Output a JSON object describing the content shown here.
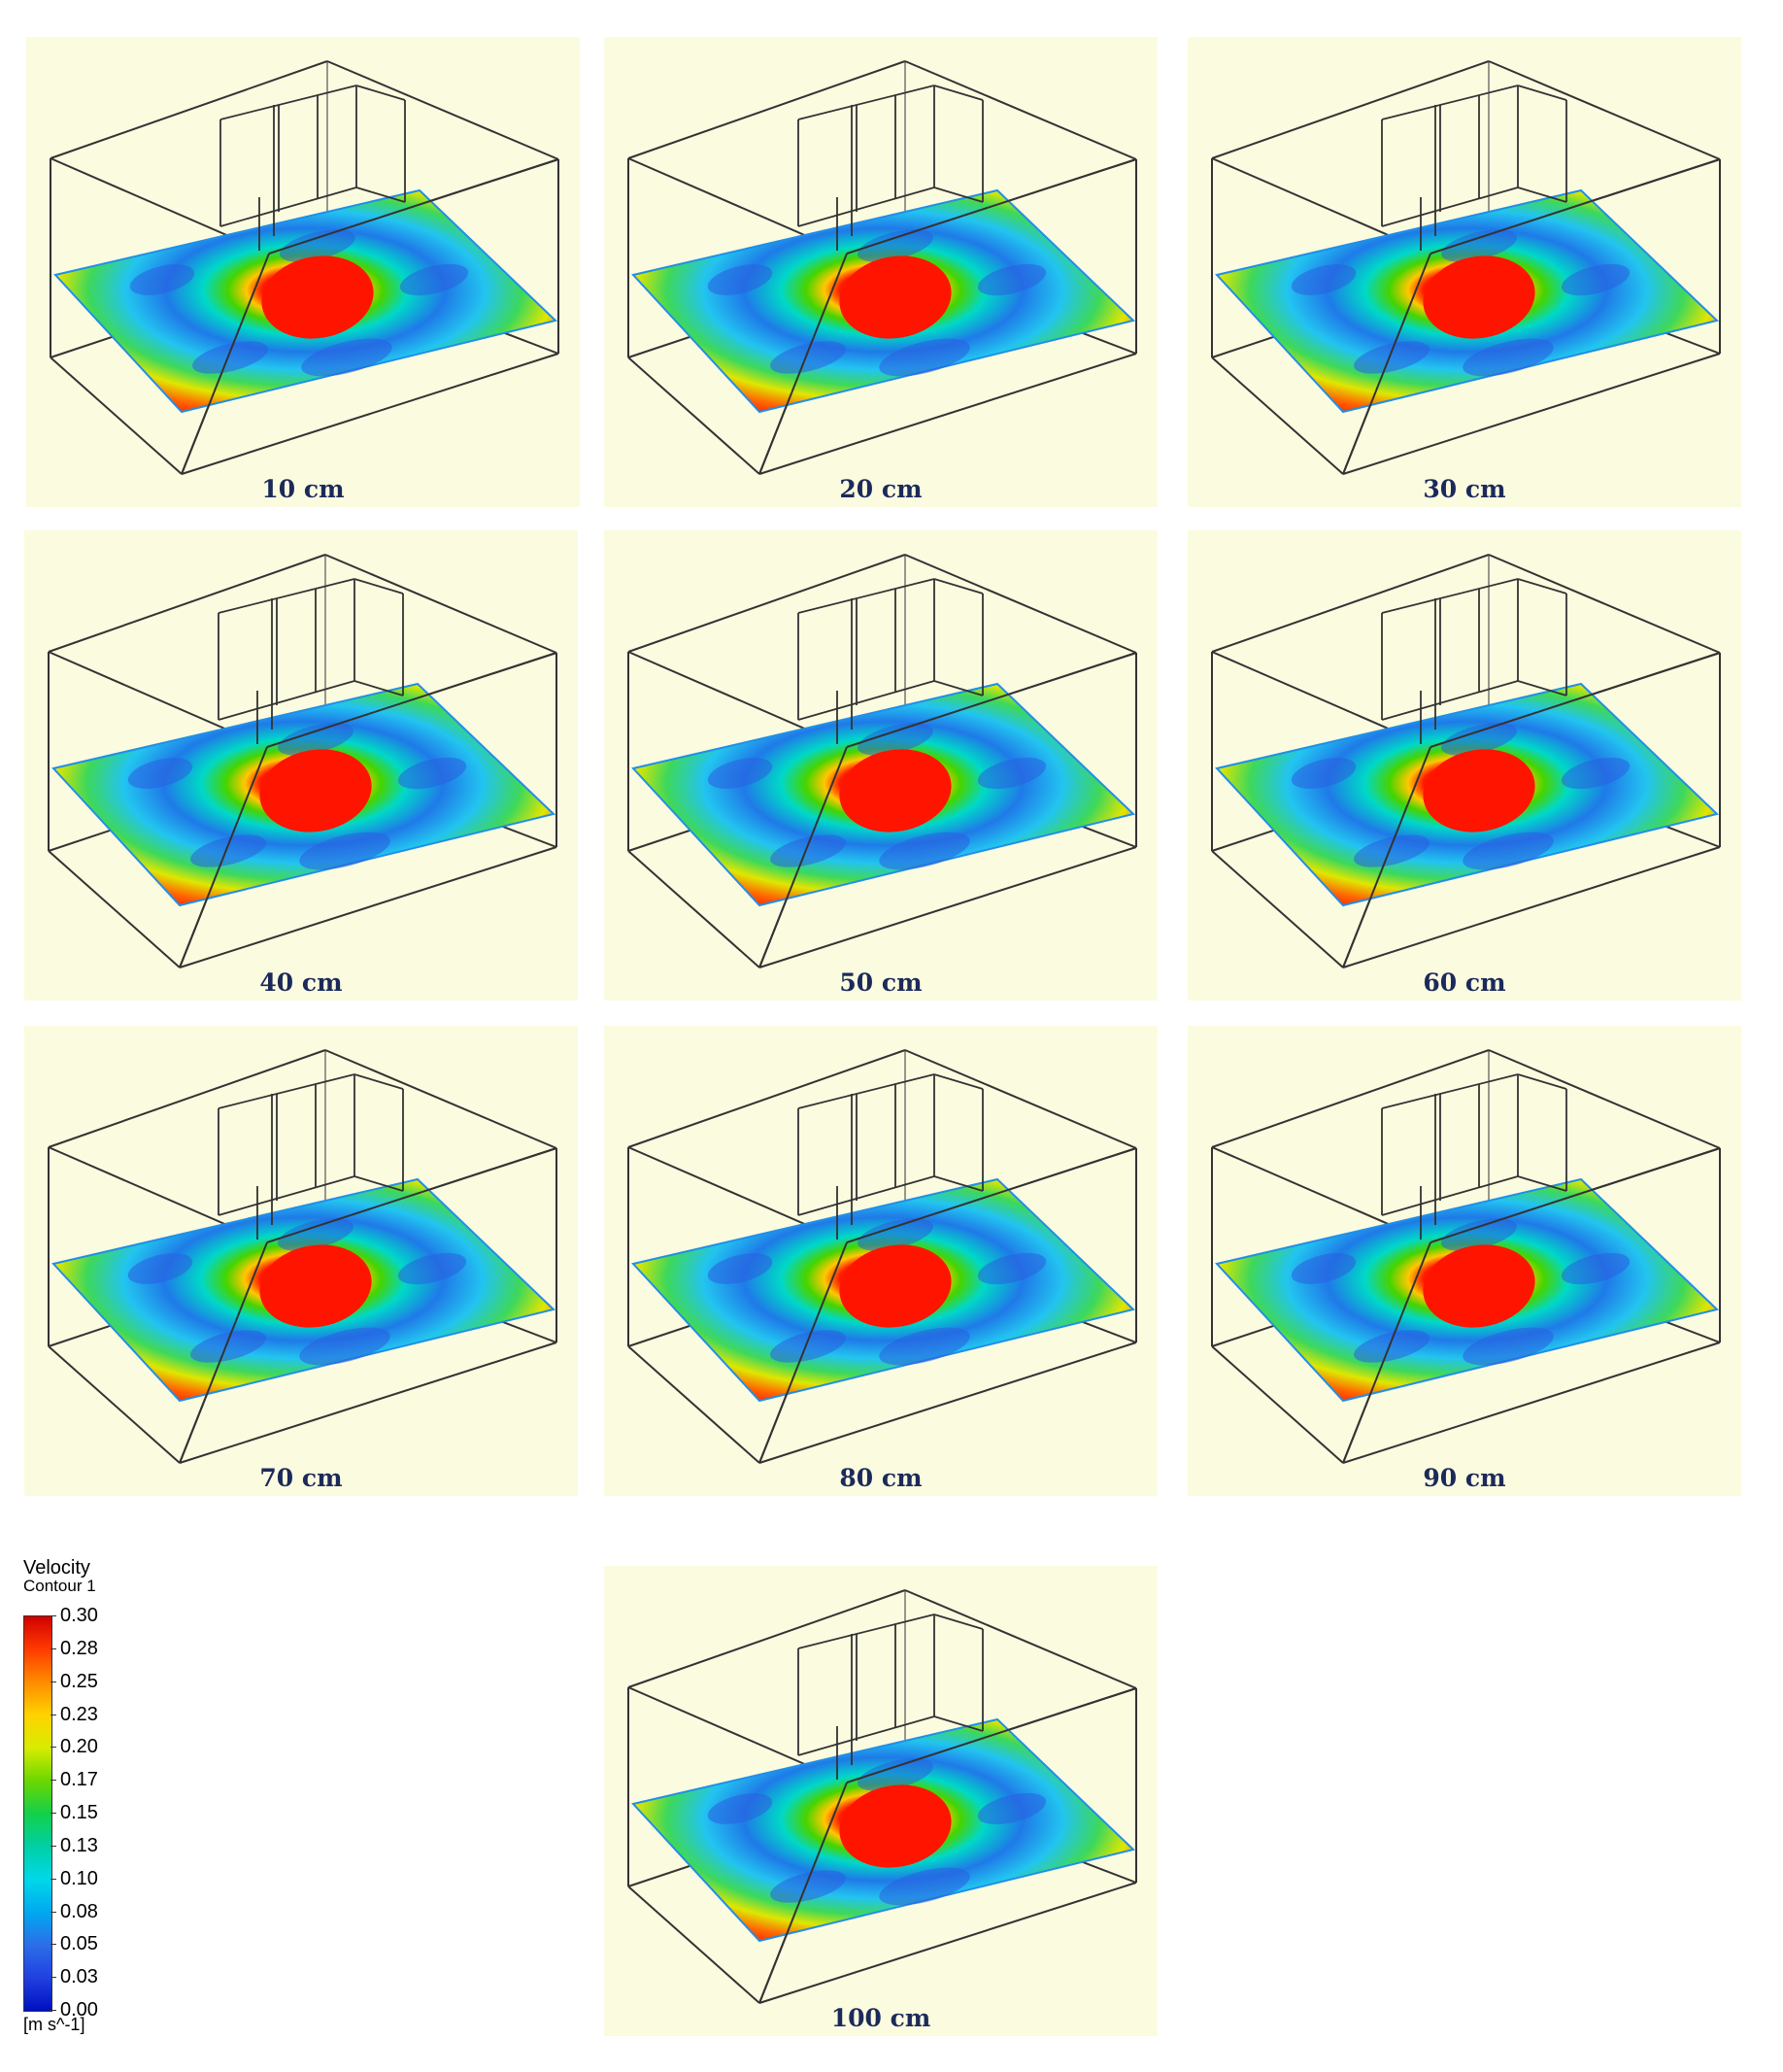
{
  "panels": [
    {
      "label": "10 cm"
    },
    {
      "label": "20 cm"
    },
    {
      "label": "30 cm"
    },
    {
      "label": "40 cm"
    },
    {
      "label": "50 cm"
    },
    {
      "label": "60 cm"
    },
    {
      "label": "70 cm"
    },
    {
      "label": "80 cm"
    },
    {
      "label": "90 cm"
    },
    {
      "label": "100 cm"
    }
  ],
  "legend": {
    "title": "Velocity",
    "subtitle": "Contour 1",
    "ticks": [
      "0.30",
      "0.28",
      "0.25",
      "0.23",
      "0.20",
      "0.17",
      "0.15",
      "0.13",
      "0.10",
      "0.08",
      "0.05",
      "0.03",
      "0.00"
    ],
    "unit": "[m s^-1]",
    "colors": [
      "#d10000",
      "#ff3a00",
      "#ff8c00",
      "#ffd200",
      "#d8ec00",
      "#6cd600",
      "#12d04a",
      "#00cfa5",
      "#00d8e8",
      "#00a8f0",
      "#2c6ee8",
      "#2040e0",
      "#0010c0"
    ]
  },
  "background_color": "#fbfbe0"
}
